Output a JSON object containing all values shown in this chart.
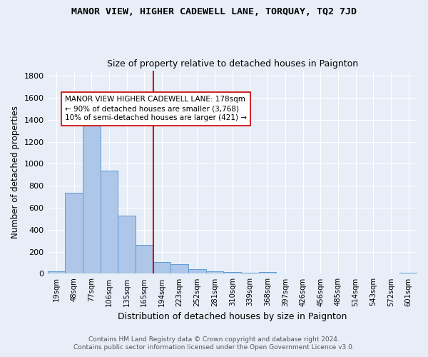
{
  "title": "MANOR VIEW, HIGHER CADEWELL LANE, TORQUAY, TQ2 7JD",
  "subtitle": "Size of property relative to detached houses in Paignton",
  "xlabel": "Distribution of detached houses by size in Paignton",
  "ylabel": "Number of detached properties",
  "categories": [
    "19sqm",
    "48sqm",
    "77sqm",
    "106sqm",
    "135sqm",
    "165sqm",
    "194sqm",
    "223sqm",
    "252sqm",
    "281sqm",
    "310sqm",
    "339sqm",
    "368sqm",
    "397sqm",
    "426sqm",
    "456sqm",
    "485sqm",
    "514sqm",
    "543sqm",
    "572sqm",
    "601sqm"
  ],
  "values": [
    20,
    735,
    1415,
    935,
    530,
    265,
    105,
    90,
    42,
    25,
    18,
    8,
    14,
    3,
    5,
    1,
    0,
    0,
    0,
    0,
    12
  ],
  "bar_color": "#aec6e8",
  "bar_edge_color": "#5b9bd5",
  "background_color": "#e8eef8",
  "grid_color": "#ffffff",
  "vline_x": 6.0,
  "vline_color": "#cc0000",
  "annotation_text": "MANOR VIEW HIGHER CADEWELL LANE: 178sqm\n← 90% of detached houses are smaller (3,768)\n10% of semi-detached houses are larger (421) →",
  "annotation_box_color": "#ffffff",
  "annotation_box_edge": "#cc0000",
  "footnote1": "Contains HM Land Registry data © Crown copyright and database right 2024.",
  "footnote2": "Contains public sector information licensed under the Open Government Licence v3.0.",
  "ylim": [
    0,
    1850
  ],
  "yticks": [
    0,
    200,
    400,
    600,
    800,
    1000,
    1200,
    1400,
    1600,
    1800
  ]
}
